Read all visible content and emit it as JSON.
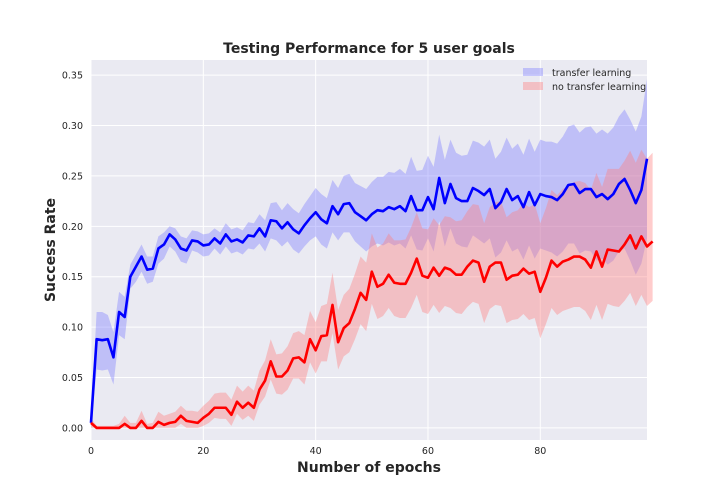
{
  "chart_data": {
    "type": "line",
    "title": "Testing Performance for 5 user goals",
    "xlabel": "Number of epochs",
    "ylabel": "Success Rate",
    "xlim": [
      0,
      99
    ],
    "ylim": [
      -0.012,
      0.365
    ],
    "xticks": [
      0,
      20,
      40,
      60,
      80
    ],
    "yticks": [
      0.0,
      0.05,
      0.1,
      0.15,
      0.2,
      0.25,
      0.3,
      0.35
    ],
    "ytick_labels": [
      "0.00",
      "0.05",
      "0.10",
      "0.15",
      "0.20",
      "0.25",
      "0.30",
      "0.35"
    ],
    "grid": true,
    "legend_position": "top-right",
    "series": [
      {
        "name": "transfer learning",
        "color": "#0000ff",
        "band_color": "#8080ff",
        "mean": [
          0.005,
          0.088,
          0.087,
          0.088,
          0.07,
          0.115,
          0.11,
          0.15,
          0.16,
          0.17,
          0.157,
          0.158,
          0.178,
          0.182,
          0.192,
          0.187,
          0.178,
          0.176,
          0.186,
          0.185,
          0.181,
          0.182,
          0.188,
          0.183,
          0.192,
          0.185,
          0.187,
          0.184,
          0.191,
          0.19,
          0.198,
          0.19,
          0.206,
          0.205,
          0.198,
          0.204,
          0.197,
          0.193,
          0.201,
          0.208,
          0.214,
          0.207,
          0.203,
          0.22,
          0.212,
          0.222,
          0.223,
          0.214,
          0.21,
          0.206,
          0.212,
          0.216,
          0.215,
          0.219,
          0.217,
          0.22,
          0.215,
          0.23,
          0.216,
          0.216,
          0.229,
          0.217,
          0.248,
          0.223,
          0.242,
          0.228,
          0.225,
          0.225,
          0.238,
          0.235,
          0.231,
          0.237,
          0.218,
          0.224,
          0.237,
          0.226,
          0.23,
          0.219,
          0.234,
          0.221,
          0.232,
          0.23,
          0.229,
          0.226,
          0.232,
          0.241,
          0.242,
          0.233,
          0.237,
          0.237,
          0.229,
          0.232,
          0.227,
          0.232,
          0.242,
          0.247,
          0.236,
          0.223,
          0.236,
          0.267
        ],
        "lower": [
          0.0,
          0.058,
          0.057,
          0.058,
          0.043,
          0.092,
          0.088,
          0.138,
          0.145,
          0.155,
          0.143,
          0.145,
          0.163,
          0.168,
          0.18,
          0.175,
          0.165,
          0.163,
          0.176,
          0.174,
          0.17,
          0.171,
          0.178,
          0.172,
          0.18,
          0.173,
          0.175,
          0.172,
          0.178,
          0.177,
          0.183,
          0.175,
          0.188,
          0.186,
          0.18,
          0.185,
          0.177,
          0.173,
          0.18,
          0.186,
          0.19,
          0.182,
          0.178,
          0.194,
          0.186,
          0.194,
          0.194,
          0.185,
          0.18,
          0.175,
          0.18,
          0.183,
          0.181,
          0.184,
          0.181,
          0.183,
          0.178,
          0.191,
          0.177,
          0.176,
          0.188,
          0.175,
          0.205,
          0.18,
          0.198,
          0.183,
          0.18,
          0.179,
          0.191,
          0.187,
          0.183,
          0.188,
          0.169,
          0.174,
          0.186,
          0.175,
          0.178,
          0.167,
          0.181,
          0.168,
          0.178,
          0.176,
          0.174,
          0.17,
          0.175,
          0.183,
          0.183,
          0.173,
          0.176,
          0.175,
          0.166,
          0.168,
          0.162,
          0.166,
          0.175,
          0.178,
          0.166,
          0.152,
          0.163,
          0.188
        ],
        "upper": [
          0.01,
          0.115,
          0.115,
          0.112,
          0.095,
          0.135,
          0.13,
          0.162,
          0.172,
          0.182,
          0.17,
          0.17,
          0.19,
          0.194,
          0.2,
          0.198,
          0.19,
          0.188,
          0.196,
          0.195,
          0.192,
          0.193,
          0.198,
          0.194,
          0.203,
          0.197,
          0.199,
          0.196,
          0.204,
          0.203,
          0.212,
          0.206,
          0.223,
          0.224,
          0.216,
          0.223,
          0.217,
          0.213,
          0.222,
          0.23,
          0.238,
          0.232,
          0.228,
          0.246,
          0.238,
          0.25,
          0.252,
          0.243,
          0.24,
          0.237,
          0.244,
          0.249,
          0.249,
          0.254,
          0.253,
          0.257,
          0.252,
          0.269,
          0.255,
          0.256,
          0.27,
          0.259,
          0.291,
          0.266,
          0.286,
          0.273,
          0.27,
          0.271,
          0.285,
          0.283,
          0.279,
          0.286,
          0.267,
          0.274,
          0.288,
          0.277,
          0.282,
          0.271,
          0.287,
          0.274,
          0.286,
          0.284,
          0.284,
          0.282,
          0.289,
          0.299,
          0.301,
          0.293,
          0.298,
          0.299,
          0.292,
          0.296,
          0.292,
          0.298,
          0.309,
          0.316,
          0.306,
          0.294,
          0.309,
          0.346
        ]
      },
      {
        "name": "no transfer learning",
        "color": "#ff0000",
        "band_color": "#ff8080",
        "mean": [
          0.005,
          0.0,
          0.0,
          0.0,
          0.0,
          0.0,
          0.004,
          0.0,
          0.0,
          0.007,
          0.0,
          0.0,
          0.006,
          0.003,
          0.005,
          0.006,
          0.012,
          0.007,
          0.006,
          0.005,
          0.01,
          0.014,
          0.02,
          0.02,
          0.02,
          0.013,
          0.026,
          0.02,
          0.025,
          0.02,
          0.038,
          0.047,
          0.066,
          0.051,
          0.051,
          0.057,
          0.069,
          0.07,
          0.065,
          0.088,
          0.077,
          0.091,
          0.092,
          0.122,
          0.085,
          0.099,
          0.104,
          0.118,
          0.134,
          0.127,
          0.155,
          0.14,
          0.143,
          0.152,
          0.144,
          0.143,
          0.143,
          0.154,
          0.168,
          0.151,
          0.149,
          0.159,
          0.151,
          0.159,
          0.157,
          0.152,
          0.152,
          0.16,
          0.166,
          0.164,
          0.145,
          0.16,
          0.164,
          0.164,
          0.147,
          0.151,
          0.152,
          0.158,
          0.153,
          0.155,
          0.135,
          0.149,
          0.166,
          0.16,
          0.165,
          0.167,
          0.17,
          0.17,
          0.167,
          0.159,
          0.175,
          0.16,
          0.177,
          0.176,
          0.175,
          0.182,
          0.191,
          0.178,
          0.19,
          0.18,
          0.185
        ],
        "lower": [
          0.0,
          0.0,
          0.0,
          0.0,
          0.0,
          0.0,
          0.0,
          0.0,
          0.0,
          0.0,
          0.0,
          0.0,
          0.0,
          0.0,
          0.0,
          0.0,
          0.004,
          0.0,
          0.0,
          0.0,
          0.002,
          0.005,
          0.01,
          0.009,
          0.009,
          0.002,
          0.014,
          0.008,
          0.012,
          0.007,
          0.023,
          0.031,
          0.048,
          0.034,
          0.033,
          0.038,
          0.049,
          0.049,
          0.043,
          0.065,
          0.054,
          0.066,
          0.066,
          0.094,
          0.058,
          0.071,
          0.075,
          0.088,
          0.103,
          0.096,
          0.123,
          0.108,
          0.111,
          0.119,
          0.111,
          0.109,
          0.109,
          0.119,
          0.132,
          0.115,
          0.113,
          0.122,
          0.114,
          0.121,
          0.119,
          0.114,
          0.113,
          0.12,
          0.125,
          0.123,
          0.104,
          0.118,
          0.122,
          0.121,
          0.104,
          0.107,
          0.108,
          0.113,
          0.107,
          0.109,
          0.089,
          0.103,
          0.119,
          0.112,
          0.116,
          0.118,
          0.12,
          0.12,
          0.116,
          0.107,
          0.122,
          0.107,
          0.123,
          0.121,
          0.12,
          0.126,
          0.134,
          0.121,
          0.132,
          0.121,
          0.126
        ],
        "upper": [
          0.01,
          0.002,
          0.002,
          0.002,
          0.002,
          0.004,
          0.012,
          0.005,
          0.005,
          0.017,
          0.004,
          0.005,
          0.016,
          0.012,
          0.014,
          0.016,
          0.022,
          0.017,
          0.017,
          0.016,
          0.022,
          0.027,
          0.034,
          0.035,
          0.035,
          0.028,
          0.042,
          0.036,
          0.042,
          0.037,
          0.057,
          0.067,
          0.088,
          0.073,
          0.074,
          0.081,
          0.094,
          0.096,
          0.092,
          0.116,
          0.105,
          0.121,
          0.123,
          0.154,
          0.117,
          0.132,
          0.138,
          0.153,
          0.17,
          0.164,
          0.193,
          0.179,
          0.183,
          0.193,
          0.186,
          0.186,
          0.187,
          0.199,
          0.214,
          0.198,
          0.197,
          0.208,
          0.201,
          0.21,
          0.209,
          0.205,
          0.206,
          0.215,
          0.222,
          0.221,
          0.203,
          0.219,
          0.224,
          0.225,
          0.209,
          0.214,
          0.216,
          0.223,
          0.219,
          0.222,
          0.203,
          0.218,
          0.236,
          0.231,
          0.237,
          0.24,
          0.244,
          0.245,
          0.243,
          0.236,
          0.253,
          0.239,
          0.257,
          0.257,
          0.257,
          0.265,
          0.275,
          0.263,
          0.276,
          0.267,
          0.273
        ]
      }
    ]
  }
}
